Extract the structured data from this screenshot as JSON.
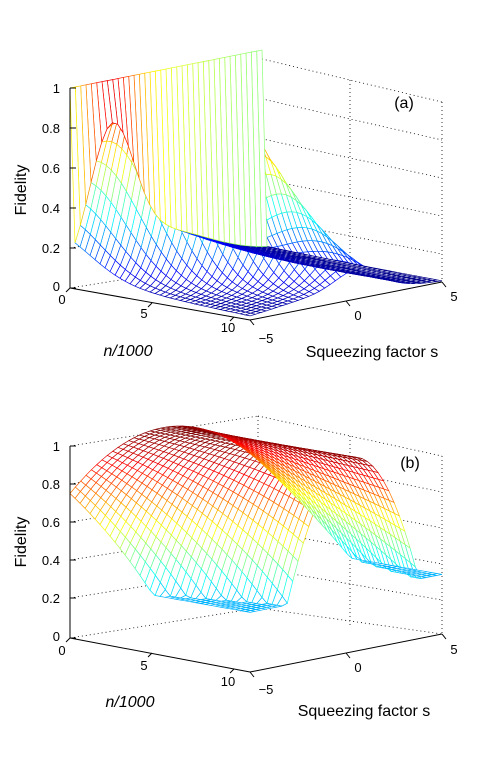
{
  "chart_data": [
    {
      "type": "surface",
      "panel_label": "(a)",
      "zlabel": "Fidelity",
      "xlabel": "n/1000",
      "ylabel": "Squeezing factor  s",
      "x_ticks": [
        "0",
        "5",
        "10"
      ],
      "y_ticks": [
        "−5",
        "0",
        "5"
      ],
      "z_ticks": [
        "0",
        "0.2",
        "0.4",
        "0.6",
        "0.8",
        "1"
      ],
      "xlim": [
        0,
        11
      ],
      "ylim": [
        -5,
        5
      ],
      "zlim": [
        0,
        1
      ],
      "grid": true,
      "colormap": "jet",
      "description_points": [
        {
          "n": 0,
          "s": -5,
          "fidelity": 1.0
        },
        {
          "n": 0,
          "s": 0,
          "fidelity": 0.2
        },
        {
          "n": 5,
          "s": -5,
          "fidelity": 0.9
        },
        {
          "n": 10,
          "s": -5,
          "fidelity": 0.15
        },
        {
          "n": 5,
          "s": 5,
          "fidelity": 0.03
        }
      ]
    },
    {
      "type": "surface",
      "panel_label": "(b)",
      "zlabel": "Fidelity",
      "xlabel": "n/1000",
      "ylabel": "Squeezing factor  s",
      "x_ticks": [
        "0",
        "5",
        "10"
      ],
      "y_ticks": [
        "−5",
        "0",
        "5"
      ],
      "z_ticks": [
        "0",
        "0.2",
        "0.4",
        "0.6",
        "0.8",
        "1"
      ],
      "xlim": [
        0,
        11
      ],
      "ylim": [
        -5,
        5
      ],
      "zlim": [
        0,
        1
      ],
      "grid": true,
      "colormap": "jet",
      "description_points": [
        {
          "n": 0,
          "s": 0,
          "fidelity": 1.0
        },
        {
          "n": 0,
          "s": -5,
          "fidelity": 0.95
        },
        {
          "n": 10,
          "s": -5,
          "fidelity": 0.35
        },
        {
          "n": 0,
          "s": 5,
          "fidelity": 0.35
        },
        {
          "n": 10,
          "s": 5,
          "fidelity": 0.5
        }
      ]
    }
  ]
}
